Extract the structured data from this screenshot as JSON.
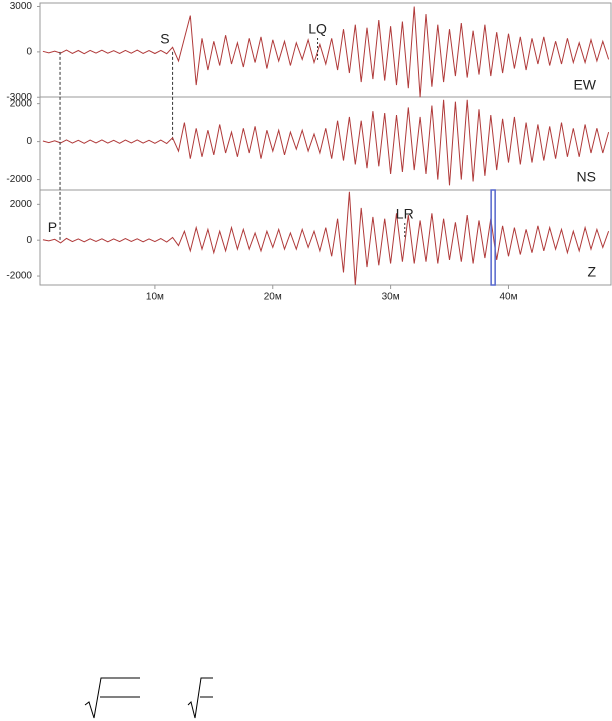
{
  "chart_data": {
    "type": "line",
    "x": [
      0.5,
      1,
      1.5,
      2,
      2.5,
      3,
      3.5,
      4,
      4.5,
      5,
      5.5,
      6,
      6.5,
      7,
      7.5,
      8,
      8.5,
      9,
      9.5,
      10,
      10.5,
      11,
      11.5,
      12,
      12.5,
      13,
      13.5,
      14,
      14.5,
      15,
      15.5,
      16,
      16.5,
      17,
      17.5,
      18,
      18.5,
      19,
      19.5,
      20,
      20.5,
      21,
      21.5,
      22,
      22.5,
      23,
      23.5,
      24,
      24.5,
      25,
      25.5,
      26,
      26.5,
      27,
      27.5,
      28,
      28.5,
      29,
      29.5,
      30,
      30.5,
      31,
      31.5,
      32,
      32.5,
      33,
      33.5,
      34,
      34.5,
      35,
      35.5,
      36,
      36.5,
      37,
      37.5,
      38,
      38.5,
      39,
      39.5,
      40,
      40.5,
      41,
      41.5,
      42,
      42.5,
      43,
      43.5,
      44,
      44.5,
      45,
      45.5,
      46,
      46.5,
      47,
      47.5,
      48,
      48.5
    ],
    "xlim": [
      0.25,
      48.7
    ],
    "xticks": [
      {
        "value": 10,
        "label": "10м"
      },
      {
        "value": 20,
        "label": "20м"
      },
      {
        "value": 30,
        "label": "30м"
      },
      {
        "value": 40,
        "label": "40м"
      }
    ],
    "series": [
      {
        "name": "EW",
        "color": "#b03a3a",
        "ylim": [
          -3050,
          3100
        ],
        "yticks": [
          -3000,
          0,
          3000
        ],
        "values": [
          40,
          -60,
          50,
          -80,
          120,
          -100,
          90,
          -120,
          100,
          -80,
          110,
          -90,
          80,
          -110,
          100,
          -90,
          120,
          -100,
          90,
          -110,
          100,
          -120,
          300,
          -600,
          900,
          2400,
          -2200,
          900,
          -1200,
          700,
          -900,
          1100,
          -800,
          600,
          -1000,
          900,
          -700,
          1000,
          -1100,
          800,
          -600,
          700,
          -900,
          600,
          -500,
          800,
          -700,
          500,
          -800,
          900,
          -1200,
          1500,
          -1400,
          1800,
          -2000,
          1600,
          -1800,
          2100,
          -1900,
          1700,
          -2200,
          2000,
          -2400,
          3000,
          -3000,
          2500,
          -2300,
          1800,
          -2000,
          1500,
          -1600,
          1900,
          -1700,
          1400,
          -1500,
          1800,
          -1600,
          1300,
          -1400,
          1200,
          -1100,
          1000,
          -1200,
          900,
          -800,
          1000,
          -900,
          700,
          -800,
          900,
          -700,
          600,
          -700,
          800,
          -600,
          700,
          -500
        ],
        "annotations": [
          {
            "text": "S",
            "x": 11.5
          },
          {
            "text": "LQ",
            "x": 23.8
          }
        ]
      },
      {
        "name": "NS",
        "color": "#b03a3a",
        "ylim": [
          -2550,
          2350
        ],
        "yticks": [
          -2000,
          0,
          2000
        ],
        "values": [
          30,
          -50,
          40,
          -70,
          90,
          -80,
          70,
          -90,
          80,
          -70,
          90,
          -80,
          70,
          -90,
          80,
          -70,
          90,
          -80,
          70,
          -90,
          80,
          -100,
          200,
          -500,
          1000,
          -900,
          700,
          -800,
          600,
          -700,
          900,
          -600,
          500,
          -800,
          700,
          -600,
          800,
          -900,
          600,
          -500,
          600,
          -700,
          500,
          -400,
          600,
          -500,
          400,
          -600,
          700,
          -900,
          1100,
          -1000,
          1300,
          -1200,
          1100,
          -1400,
          1600,
          -1300,
          1500,
          -1700,
          1400,
          -1600,
          1800,
          -1500,
          1300,
          -1700,
          1900,
          -2000,
          2200,
          -2300,
          2100,
          -2000,
          2200,
          -2100,
          1700,
          -1800,
          1400,
          -1500,
          1200,
          -1100,
          1300,
          -1200,
          1000,
          -1100,
          900,
          -1000,
          800,
          -900,
          1000,
          -800,
          700,
          -800,
          900,
          -600,
          700,
          -600,
          500
        ],
        "annotations": []
      },
      {
        "name": "Z",
        "color": "#b03a3a",
        "ylim": [
          -2500,
          2800
        ],
        "yticks": [
          -2000,
          0,
          2000
        ],
        "values": [
          30,
          -40,
          50,
          -150,
          100,
          -80,
          70,
          -90,
          80,
          -70,
          80,
          -90,
          70,
          -80,
          90,
          -70,
          80,
          -90,
          70,
          -80,
          90,
          -100,
          150,
          -300,
          500,
          -600,
          700,
          -500,
          600,
          -700,
          500,
          -600,
          700,
          -500,
          600,
          -500,
          400,
          -600,
          500,
          -400,
          600,
          -500,
          400,
          -500,
          600,
          -400,
          500,
          -600,
          700,
          -900,
          1200,
          -1800,
          2700,
          -2500,
          1800,
          -1500,
          1300,
          -1400,
          1200,
          -1300,
          1500,
          -1200,
          1400,
          -1300,
          1100,
          -1200,
          1500,
          -1300,
          1200,
          -1100,
          1000,
          -1200,
          1400,
          -1300,
          1100,
          -1000,
          1200,
          -1100,
          800,
          -900,
          700,
          -800,
          600,
          -700,
          800,
          -600,
          700,
          -500,
          600,
          -700,
          500,
          -600,
          700,
          -500,
          600,
          -400,
          500
        ],
        "annotations": [
          {
            "text": "P",
            "x": 1.95
          },
          {
            "text": "LR",
            "x": 31.2
          }
        ]
      }
    ],
    "cursor": {
      "x": 38.7,
      "color": "#5566cc"
    }
  }
}
